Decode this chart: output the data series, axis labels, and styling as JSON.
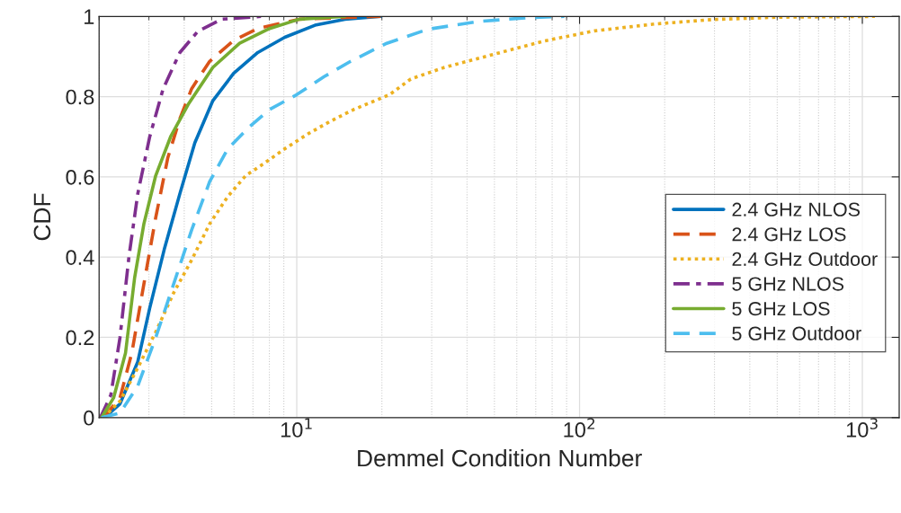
{
  "chart_data": {
    "type": "line",
    "xlabel": "Demmel Condition Number",
    "ylabel": "CDF",
    "log": "x",
    "grid": true,
    "legend": "right",
    "xlim": [
      2,
      1350
    ],
    "ylim": [
      0,
      1
    ],
    "xticks": [
      {
        "value": 10,
        "label": "10$^{1}$"
      },
      {
        "value": 100,
        "label": "10$^{2}$"
      },
      {
        "value": 1000,
        "label": "10$^{3}$"
      }
    ],
    "yticks": [
      0,
      0.2,
      0.4,
      0.6,
      0.8,
      1
    ],
    "series": [
      {
        "name": "2.4 GHz NLOS",
        "color": "#0072bd",
        "line_style": "solid",
        "x": [
          2.09,
          2.37,
          2.74,
          3.02,
          3.41,
          3.86,
          4.36,
          5.05,
          5.98,
          7.28,
          9.07,
          11.6,
          14.8,
          19.8
        ],
        "values": [
          0,
          0.034,
          0.139,
          0.273,
          0.423,
          0.558,
          0.685,
          0.79,
          0.858,
          0.91,
          0.948,
          0.978,
          0.993,
          1.0
        ]
      },
      {
        "name": "2.4 GHz LOS",
        "color": "#d95319",
        "line_style": "dashed",
        "x": [
          2.07,
          2.37,
          2.61,
          2.88,
          3.17,
          3.5,
          3.86,
          4.25,
          4.92,
          5.98,
          7.28,
          10.2,
          19.8
        ],
        "values": [
          0,
          0.049,
          0.161,
          0.333,
          0.498,
          0.648,
          0.745,
          0.82,
          0.888,
          0.94,
          0.97,
          0.993,
          1.0
        ]
      },
      {
        "name": "2.4 GHz Outdoor",
        "color": "#edb120",
        "line_style": "dotted",
        "x": [
          2.07,
          2.37,
          2.74,
          3.17,
          3.67,
          4.25,
          4.92,
          5.7,
          6.6,
          7.64,
          9.07,
          11.0,
          13.1,
          15.9,
          21.3,
          25.3,
          33.3,
          50.0,
          75.2,
          113,
          184,
          292,
          502,
          1107
        ],
        "values": [
          0,
          0.041,
          0.124,
          0.213,
          0.311,
          0.393,
          0.483,
          0.551,
          0.603,
          0.633,
          0.67,
          0.708,
          0.738,
          0.768,
          0.805,
          0.844,
          0.873,
          0.906,
          0.939,
          0.964,
          0.981,
          0.992,
          0.998,
          1.0
        ]
      },
      {
        "name": "5 GHz NLOS",
        "color": "#7e2f8e",
        "line_style": "dashdot",
        "x": [
          2.02,
          2.2,
          2.37,
          2.55,
          2.74,
          3.02,
          3.37,
          3.86,
          4.47,
          5.43,
          7.47
        ],
        "values": [
          0,
          0.056,
          0.199,
          0.401,
          0.558,
          0.7,
          0.82,
          0.91,
          0.963,
          0.993,
          1.0
        ]
      },
      {
        "name": "5 GHz LOS",
        "color": "#77ac30",
        "line_style": "solid",
        "x": [
          2.04,
          2.25,
          2.48,
          2.67,
          2.88,
          3.17,
          3.58,
          4.15,
          5.05,
          6.28,
          8.02,
          10.2,
          14.8
        ],
        "values": [
          0,
          0.049,
          0.161,
          0.348,
          0.483,
          0.603,
          0.7,
          0.783,
          0.873,
          0.933,
          0.97,
          0.993,
          1.0
        ]
      },
      {
        "name": "5 GHz Outdoor",
        "color": "#4dbeee",
        "line_style": "dashed",
        "x": [
          2.04,
          2.37,
          2.74,
          3.17,
          3.67,
          4.25,
          4.92,
          5.7,
          6.76,
          8.02,
          10.0,
          12.5,
          15.5,
          20.8,
          29.1,
          43.6,
          65.8,
          88.3
        ],
        "values": [
          0,
          0.011,
          0.079,
          0.199,
          0.333,
          0.468,
          0.588,
          0.67,
          0.723,
          0.768,
          0.805,
          0.85,
          0.888,
          0.933,
          0.968,
          0.987,
          0.997,
          1.0
        ]
      }
    ]
  }
}
